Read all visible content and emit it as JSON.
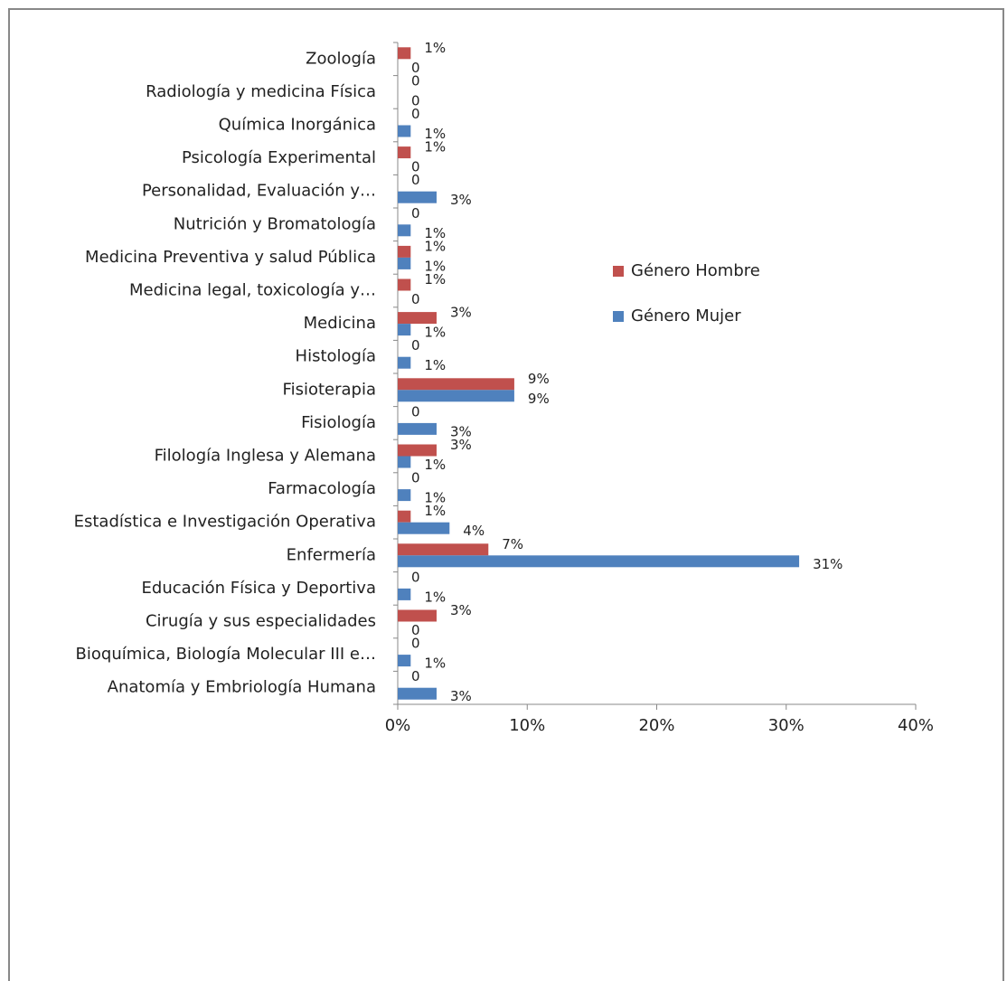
{
  "chart_data": {
    "type": "bar",
    "orientation": "horizontal",
    "categories": [
      "Zoología",
      "Radiología y medicina Física",
      "Química Inorgánica",
      "Psicología Experimental",
      "Personalidad, Evaluación y…",
      "Nutrición y Bromatología",
      "Medicina Preventiva y salud Pública",
      "Medicina legal, toxicología y…",
      "Medicina",
      "Histología",
      "Fisioterapia",
      "Fisiología",
      "Filología Inglesa y Alemana",
      "Farmacología",
      "Estadística e Investigación Operativa",
      "Enfermería",
      "Educación Física y Deportiva",
      "Cirugía y sus especialidades",
      "Bioquímica, Biología Molecular III e…",
      "Anatomía y Embriología Humana"
    ],
    "series": [
      {
        "name": "Género Hombre",
        "color": "#c0504d",
        "values": [
          1,
          0,
          0,
          1,
          0,
          0,
          1,
          1,
          3,
          0,
          9,
          0,
          3,
          0,
          1,
          7,
          0,
          3,
          0,
          0
        ],
        "value_labels": [
          "1%",
          "0",
          "0",
          "1%",
          "0",
          "0",
          "1%",
          "1%",
          "3%",
          "0",
          "9%",
          "0",
          "3%",
          "0",
          "1%",
          "7%",
          "0",
          "3%",
          "0",
          "0"
        ]
      },
      {
        "name": "Género Mujer",
        "color": "#4f81bd",
        "values": [
          0,
          0,
          1,
          0,
          3,
          1,
          1,
          0,
          1,
          1,
          9,
          3,
          1,
          1,
          4,
          31,
          1,
          0,
          1,
          3
        ],
        "value_labels": [
          "0",
          "0",
          "1%",
          "0",
          "3%",
          "1%",
          "1%",
          "0",
          "1%",
          "1%",
          "9%",
          "3%",
          "1%",
          "1%",
          "4%",
          "31%",
          "1%",
          "0",
          "1%",
          "3%"
        ]
      }
    ],
    "xlim": [
      0,
      40
    ],
    "xticks": [
      {
        "value": 0,
        "label": "0%"
      },
      {
        "value": 10,
        "label": "10%"
      },
      {
        "value": 20,
        "label": "20%"
      },
      {
        "value": 30,
        "label": "30%"
      },
      {
        "value": 40,
        "label": "40%"
      }
    ],
    "legend": "right"
  }
}
